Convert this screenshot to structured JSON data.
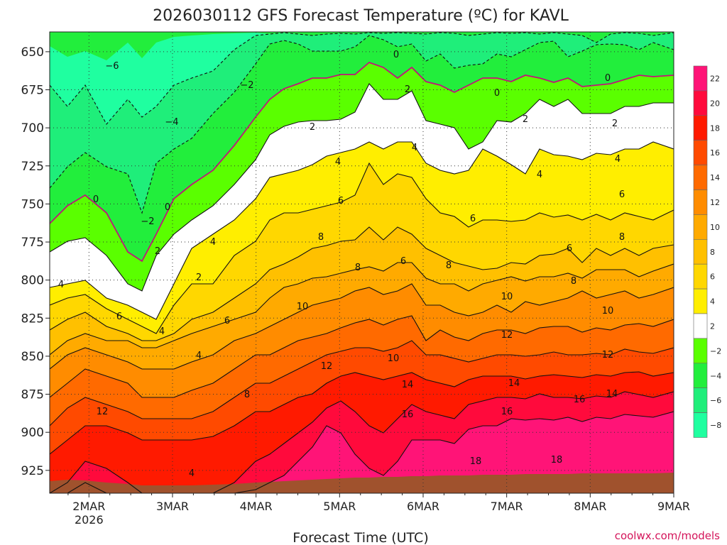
{
  "chart_data": {
    "type": "heatmap",
    "title": "2026030112 GFS Forecast Temperature (ºC) for KAVL",
    "xlabel": "Forecast Time (UTC)",
    "ylabel": "",
    "credit": "coolwx.com/models",
    "y_axis": {
      "range": [
        940,
        637
      ],
      "ticks": [
        "650",
        "675",
        "700",
        "725",
        "750",
        "775",
        "800",
        "825",
        "850",
        "875",
        "900",
        "925"
      ],
      "tick_values": [
        650,
        675,
        700,
        725,
        750,
        775,
        800,
        825,
        850,
        875,
        900,
        925
      ]
    },
    "x_axis": {
      "range_days": [
        -0.47,
        7.0
      ],
      "ticks": [
        {
          "label": "2MAR",
          "sublabel": "2026",
          "day": 0
        },
        {
          "label": "3MAR",
          "day": 1
        },
        {
          "label": "4MAR",
          "day": 2
        },
        {
          "label": "5MAR",
          "day": 3
        },
        {
          "label": "6MAR",
          "day": 4
        },
        {
          "label": "7MAR",
          "day": 5
        },
        {
          "label": "8MAR",
          "day": 6
        },
        {
          "label": "9MAR",
          "day": 7
        }
      ]
    },
    "colorbar": {
      "levels": [
        "22",
        "20",
        "18",
        "16",
        "14",
        "12",
        "10",
        "8",
        "6",
        "4",
        "2",
        "−2",
        "−4",
        "−6",
        "−8"
      ],
      "colors": [
        "#ff1477",
        "#ff0a3c",
        "#ff1a00",
        "#ff4a00",
        "#ff6a00",
        "#ff8c00",
        "#ffaa00",
        "#ffc000",
        "#ffd700",
        "#ffee00",
        "#ffffff",
        "#5aff00",
        "#22ee3c",
        "#1fee7a",
        "#1fffa0"
      ]
    },
    "ground_color": "#a0522d",
    "contour_labels": [
      "−6",
      "−4",
      "−2",
      "0",
      "2",
      "4",
      "6",
      "8",
      "10",
      "12",
      "14",
      "16",
      "18"
    ],
    "temperature_profile_columns": [
      {
        "day": -0.47,
        "temps": [
          -6,
          -4,
          0,
          4,
          8,
          12,
          14
        ]
      },
      {
        "day": 0.0,
        "temps": [
          -6,
          -4,
          0,
          4,
          8,
          12,
          16
        ]
      },
      {
        "day": 0.7,
        "temps": [
          -4,
          -2,
          0,
          2,
          4,
          6,
          8
        ]
      },
      {
        "day": 1.0,
        "temps": [
          -4,
          -2,
          2,
          2,
          4,
          4,
          4
        ]
      },
      {
        "day": 2.0,
        "temps": [
          -2,
          0,
          2,
          4,
          6,
          8,
          8
        ]
      },
      {
        "day": 3.0,
        "temps": [
          0,
          2,
          4,
          8,
          10,
          12,
          16
        ]
      },
      {
        "day": 4.0,
        "temps": [
          0,
          2,
          4,
          8,
          10,
          14,
          16
        ]
      },
      {
        "day": 5.0,
        "temps": [
          0,
          2,
          6,
          10,
          12,
          16,
          18
        ]
      },
      {
        "day": 6.0,
        "temps": [
          0,
          2,
          6,
          10,
          12,
          16,
          18
        ]
      },
      {
        "day": 7.0,
        "temps": [
          0,
          2,
          6,
          10,
          12,
          16,
          18
        ]
      }
    ]
  }
}
